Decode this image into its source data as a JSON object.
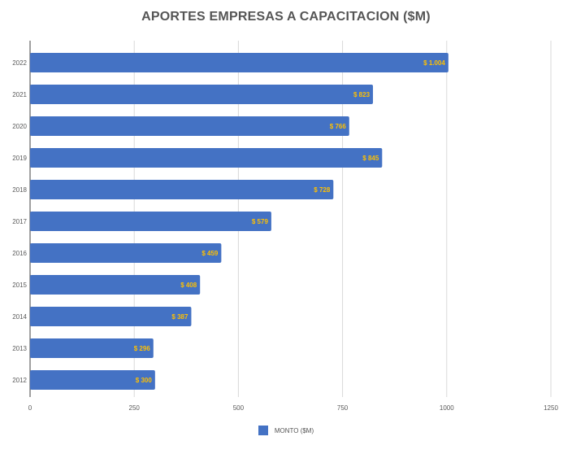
{
  "chart_data": {
    "type": "bar",
    "orientation": "horizontal",
    "title": "APORTES EMPRESAS A CAPACITACION ($M)",
    "xlabel": "",
    "ylabel": "",
    "xlim": [
      0,
      1250
    ],
    "x_ticks": [
      "0",
      "250",
      "500",
      "750",
      "1000",
      "1250"
    ],
    "grid": true,
    "legend_position": "bottom",
    "categories": [
      "2022",
      "2021",
      "2020",
      "2019",
      "2018",
      "2017",
      "2016",
      "2015",
      "2014",
      "2013",
      "2012"
    ],
    "series": [
      {
        "name": "MONTO ($M)",
        "color": "#4472c4",
        "values": [
          1004,
          823,
          766,
          845,
          728,
          579,
          459,
          408,
          387,
          296,
          300
        ],
        "data_labels": [
          "$ 1.004",
          "$ 823",
          "$ 766",
          "$ 845",
          "$ 728",
          "$ 579",
          "$ 459",
          "$ 408",
          "$ 387",
          "$ 296",
          "$ 300"
        ]
      }
    ],
    "label_color": "#ffc000"
  }
}
